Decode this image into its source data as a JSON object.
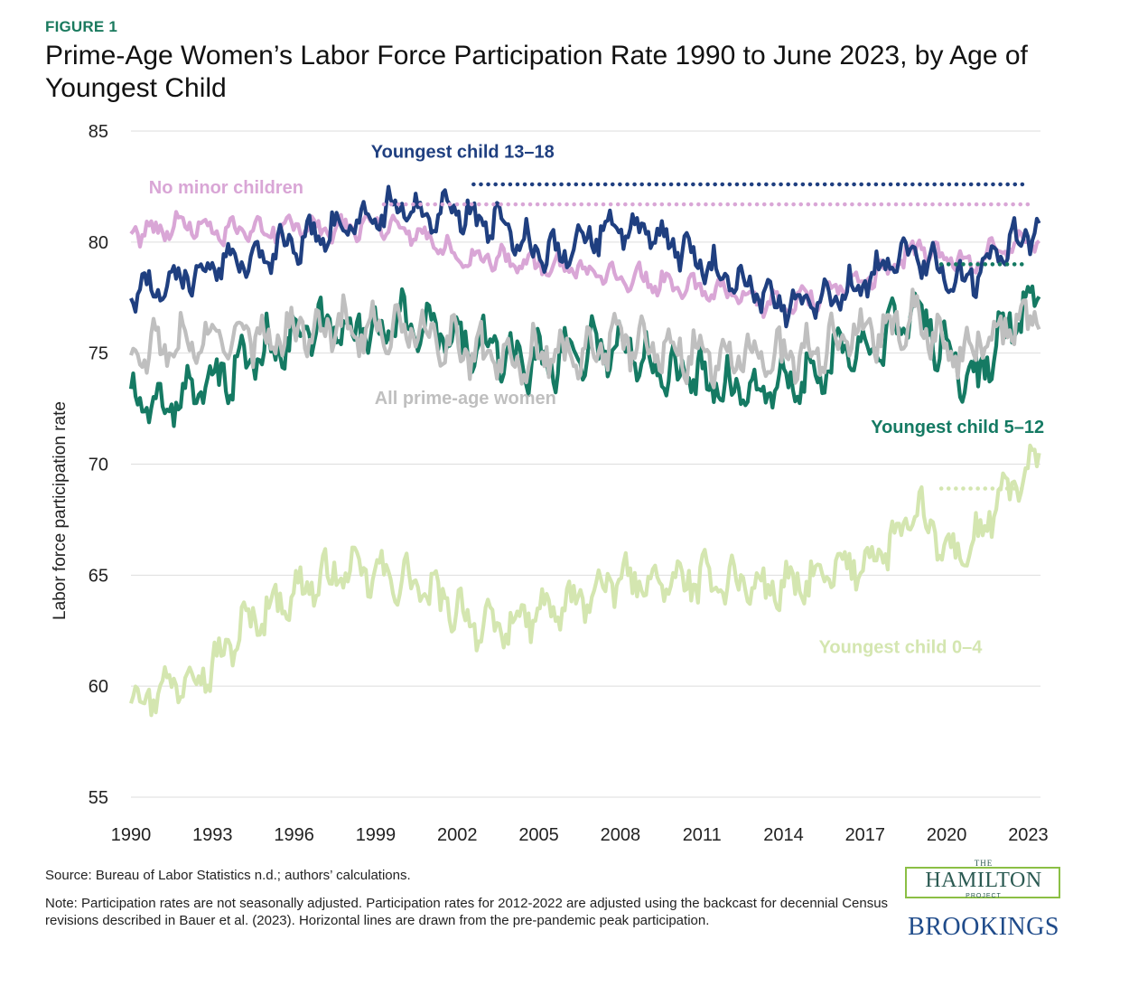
{
  "figure_label": "FIGURE 1",
  "title": "Prime-Age Women’s Labor Force Participation Rate 1990 to June 2023, by Age of Youngest Child",
  "source": "Source: Bureau of Labor Statistics n.d.; authors’ calculations.",
  "note": "Note: Participation rates are not seasonally adjusted. Participation rates for 2012-2022 are adjusted using the backcast for decennial Census revisions described in Bauer et al. (2023).  Horizontal lines are drawn from the pre-pandemic peak participation.",
  "logos": {
    "hamilton_the": "THE",
    "hamilton_name": "HAMILTON",
    "hamilton_project": "PROJECT",
    "brookings": "BROOKINGS"
  },
  "chart_data": {
    "type": "line",
    "ylabel": "Labor force participation rate",
    "ylim": [
      55,
      85
    ],
    "yticks": [
      55,
      60,
      65,
      70,
      75,
      80,
      85
    ],
    "xlim": [
      1990,
      2023.4
    ],
    "xticks": [
      1990,
      1993,
      1996,
      1999,
      2002,
      2005,
      2008,
      2011,
      2014,
      2017,
      2020,
      2023
    ],
    "grid": "horizontal",
    "series": [
      {
        "name": "Youngest child 0–4",
        "color": "#d4e6b0",
        "anchors": [
          [
            1990,
            59.5
          ],
          [
            1991,
            59.8
          ],
          [
            1992,
            60.5
          ],
          [
            1993,
            60.8
          ],
          [
            1994,
            62.5
          ],
          [
            1995,
            63.5
          ],
          [
            1996,
            64.2
          ],
          [
            1997,
            64.8
          ],
          [
            1998,
            65.2
          ],
          [
            1999,
            65.0
          ],
          [
            2000,
            64.8
          ],
          [
            2001,
            64.2
          ],
          [
            2002,
            63.5
          ],
          [
            2003,
            62.5
          ],
          [
            2004,
            62.8
          ],
          [
            2005,
            63.3
          ],
          [
            2006,
            63.6
          ],
          [
            2007,
            64.2
          ],
          [
            2008,
            64.8
          ],
          [
            2009,
            64.7
          ],
          [
            2010,
            64.6
          ],
          [
            2011,
            64.8
          ],
          [
            2012,
            64.8
          ],
          [
            2013,
            64.5
          ],
          [
            2014,
            64.4
          ],
          [
            2015,
            64.7
          ],
          [
            2016,
            65.2
          ],
          [
            2017,
            65.6
          ],
          [
            2018,
            66.5
          ],
          [
            2019,
            67.8
          ],
          [
            2020,
            66.0
          ],
          [
            2021,
            66.3
          ],
          [
            2022,
            68.5
          ],
          [
            2023.4,
            70.0
          ]
        ],
        "amplitude": 1.1,
        "peak_line": {
          "from": 2019.8,
          "to": 2023.0,
          "y": 68.9
        }
      },
      {
        "name": "Youngest child 5–12",
        "color": "#157a63",
        "anchors": [
          [
            1990,
            72.8
          ],
          [
            1991,
            72.5
          ],
          [
            1992,
            73.2
          ],
          [
            1993,
            73.5
          ],
          [
            1994,
            74.5
          ],
          [
            1995,
            75.2
          ],
          [
            1996,
            75.8
          ],
          [
            1997,
            76.0
          ],
          [
            1998,
            76.2
          ],
          [
            1999,
            76.0
          ],
          [
            2000,
            76.5
          ],
          [
            2001,
            76.0
          ],
          [
            2002,
            75.5
          ],
          [
            2003,
            75.3
          ],
          [
            2004,
            74.8
          ],
          [
            2005,
            74.6
          ],
          [
            2006,
            75.0
          ],
          [
            2007,
            75.3
          ],
          [
            2008,
            75.2
          ],
          [
            2009,
            74.8
          ],
          [
            2010,
            74.2
          ],
          [
            2011,
            73.8
          ],
          [
            2012,
            73.5
          ],
          [
            2013,
            73.2
          ],
          [
            2014,
            73.5
          ],
          [
            2015,
            73.8
          ],
          [
            2016,
            74.8
          ],
          [
            2017,
            75.5
          ],
          [
            2018,
            76.0
          ],
          [
            2019,
            77.0
          ],
          [
            2020,
            74.8
          ],
          [
            2021,
            73.8
          ],
          [
            2022,
            75.8
          ],
          [
            2023.4,
            77.5
          ]
        ],
        "amplitude": 1.3,
        "peak_line": {
          "from": 2019.8,
          "to": 2023.0,
          "y": 79.0
        }
      },
      {
        "name": "All prime-age women",
        "color": "#bfbfbf",
        "anchors": [
          [
            1990,
            74.8
          ],
          [
            1991,
            75.2
          ],
          [
            1992,
            75.4
          ],
          [
            1993,
            75.5
          ],
          [
            1994,
            75.8
          ],
          [
            1995,
            75.7
          ],
          [
            1996,
            76.0
          ],
          [
            1997,
            76.3
          ],
          [
            1998,
            76.2
          ],
          [
            1999,
            76.0
          ],
          [
            2000,
            76.0
          ],
          [
            2001,
            75.7
          ],
          [
            2002,
            75.3
          ],
          [
            2003,
            75.0
          ],
          [
            2004,
            74.8
          ],
          [
            2005,
            74.9
          ],
          [
            2006,
            75.0
          ],
          [
            2007,
            75.2
          ],
          [
            2008,
            75.5
          ],
          [
            2009,
            75.4
          ],
          [
            2010,
            75.2
          ],
          [
            2011,
            74.9
          ],
          [
            2012,
            74.8
          ],
          [
            2013,
            74.8
          ],
          [
            2014,
            74.9
          ],
          [
            2015,
            75.1
          ],
          [
            2016,
            75.6
          ],
          [
            2017,
            75.9
          ],
          [
            2018,
            76.2
          ],
          [
            2019,
            76.6
          ],
          [
            2020,
            75.3
          ],
          [
            2021,
            75.3
          ],
          [
            2022,
            76.0
          ],
          [
            2023.4,
            76.8
          ]
        ],
        "amplitude": 1.2
      },
      {
        "name": "No minor children",
        "color": "#d9a6d6",
        "anchors": [
          [
            1990,
            80.5
          ],
          [
            1991,
            80.6
          ],
          [
            1992,
            80.8
          ],
          [
            1993,
            80.5
          ],
          [
            1994,
            80.4
          ],
          [
            1995,
            80.6
          ],
          [
            1996,
            80.7
          ],
          [
            1997,
            80.6
          ],
          [
            1998,
            80.7
          ],
          [
            1999,
            80.9
          ],
          [
            2000,
            80.6
          ],
          [
            2001,
            80.2
          ],
          [
            2002,
            79.4
          ],
          [
            2003,
            79.3
          ],
          [
            2004,
            79.2
          ],
          [
            2005,
            79.0
          ],
          [
            2006,
            78.8
          ],
          [
            2007,
            78.6
          ],
          [
            2008,
            78.6
          ],
          [
            2009,
            78.3
          ],
          [
            2010,
            78.0
          ],
          [
            2011,
            77.9
          ],
          [
            2012,
            77.8
          ],
          [
            2013,
            77.4
          ],
          [
            2014,
            77.2
          ],
          [
            2015,
            77.5
          ],
          [
            2016,
            77.8
          ],
          [
            2017,
            78.3
          ],
          [
            2018,
            78.9
          ],
          [
            2019,
            79.8
          ],
          [
            2020,
            79.3
          ],
          [
            2021,
            79.0
          ],
          [
            2022,
            79.8
          ],
          [
            2023.4,
            80.2
          ]
        ],
        "amplitude": 0.6,
        "peak_line": {
          "from": 1999.3,
          "to": 2023.0,
          "y": 81.7
        }
      },
      {
        "name": "Youngest child 13–18",
        "color": "#1f3f80",
        "anchors": [
          [
            1990,
            77.8
          ],
          [
            1991,
            78.0
          ],
          [
            1992,
            78.4
          ],
          [
            1993,
            78.8
          ],
          [
            1994,
            79.2
          ],
          [
            1995,
            79.6
          ],
          [
            1996,
            80.0
          ],
          [
            1997,
            80.4
          ],
          [
            1998,
            80.8
          ],
          [
            1999,
            81.3
          ],
          [
            2000,
            81.5
          ],
          [
            2001,
            81.3
          ],
          [
            2002,
            81.3
          ],
          [
            2003,
            81.0
          ],
          [
            2004,
            80.3
          ],
          [
            2005,
            79.7
          ],
          [
            2006,
            79.6
          ],
          [
            2007,
            80.3
          ],
          [
            2008,
            80.8
          ],
          [
            2009,
            80.4
          ],
          [
            2010,
            79.8
          ],
          [
            2011,
            79.0
          ],
          [
            2012,
            78.4
          ],
          [
            2013,
            77.8
          ],
          [
            2014,
            77.3
          ],
          [
            2015,
            77.3
          ],
          [
            2016,
            77.6
          ],
          [
            2017,
            78.2
          ],
          [
            2018,
            79.2
          ],
          [
            2019,
            79.5
          ],
          [
            2020,
            78.3
          ],
          [
            2021,
            78.5
          ],
          [
            2022,
            79.8
          ],
          [
            2023.4,
            80.5
          ]
        ],
        "amplitude": 0.9,
        "peak_line": {
          "from": 2002.6,
          "to": 2023.0,
          "y": 82.6
        }
      }
    ],
    "annotations": [
      {
        "text": "Youngest child 13–18",
        "x": 2002.2,
        "y": 83.8,
        "color": "#1f3f80"
      },
      {
        "text": "No minor children",
        "x": 1993.5,
        "y": 82.2,
        "color": "#d9a6d6"
      },
      {
        "text": "All prime-age women",
        "x": 2002.3,
        "y": 72.7,
        "color": "#bfbfbf"
      },
      {
        "text": "Youngest child 5–12",
        "x": 2020.4,
        "y": 71.4,
        "color": "#157a63"
      },
      {
        "text": "Youngest child 0–4",
        "x": 2018.3,
        "y": 61.5,
        "color": "#d4e6b0"
      }
    ]
  }
}
